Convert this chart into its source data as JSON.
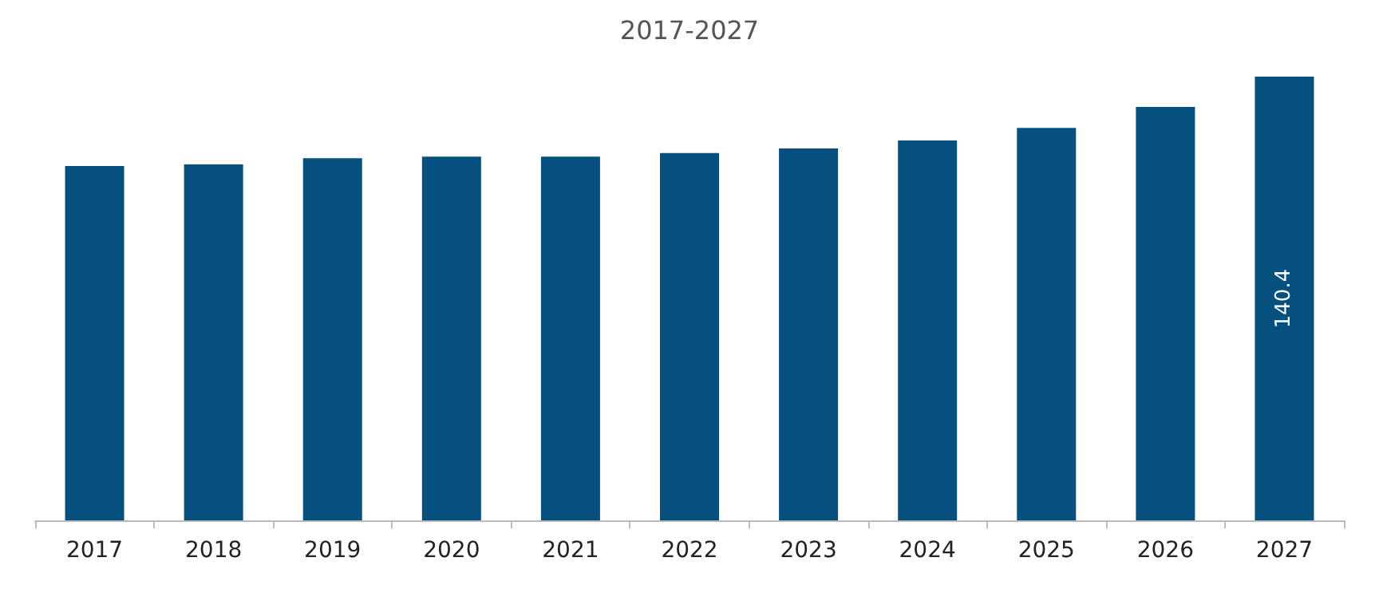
{
  "chart_data": {
    "type": "bar",
    "title": "2017-2027",
    "categories": [
      "2017",
      "2018",
      "2019",
      "2020",
      "2021",
      "2022",
      "2023",
      "2024",
      "2025",
      "2026",
      "2027"
    ],
    "values": [
      112.1,
      112.6,
      114.6,
      115.1,
      115.1,
      116.2,
      117.7,
      120.2,
      124.2,
      130.8,
      140.4
    ],
    "value_labels": [
      null,
      null,
      null,
      null,
      null,
      null,
      null,
      null,
      null,
      null,
      "140.4"
    ],
    "color": "#06507f"
  }
}
